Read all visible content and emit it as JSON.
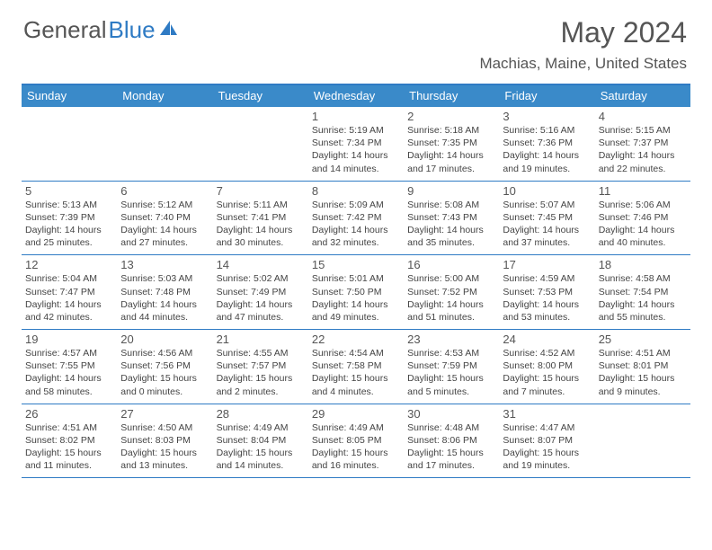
{
  "logo": {
    "text_a": "General",
    "text_b": "Blue",
    "icon_fill": "#2f7bc4"
  },
  "title": "May 2024",
  "location": "Machias, Maine, United States",
  "colors": {
    "header_bg": "#3a8ac9",
    "header_border": "#2f7bc4",
    "row_border": "#2f7bc4",
    "text": "#444444",
    "title_text": "#555555"
  },
  "day_headers": [
    "Sunday",
    "Monday",
    "Tuesday",
    "Wednesday",
    "Thursday",
    "Friday",
    "Saturday"
  ],
  "cell_labels": {
    "sunrise": "Sunrise:",
    "sunset": "Sunset:",
    "daylight": "Daylight:"
  },
  "weeks": [
    [
      null,
      null,
      null,
      {
        "d": "1",
        "sr": "5:19 AM",
        "ss": "7:34 PM",
        "dl": "14 hours and 14 minutes."
      },
      {
        "d": "2",
        "sr": "5:18 AM",
        "ss": "7:35 PM",
        "dl": "14 hours and 17 minutes."
      },
      {
        "d": "3",
        "sr": "5:16 AM",
        "ss": "7:36 PM",
        "dl": "14 hours and 19 minutes."
      },
      {
        "d": "4",
        "sr": "5:15 AM",
        "ss": "7:37 PM",
        "dl": "14 hours and 22 minutes."
      }
    ],
    [
      {
        "d": "5",
        "sr": "5:13 AM",
        "ss": "7:39 PM",
        "dl": "14 hours and 25 minutes."
      },
      {
        "d": "6",
        "sr": "5:12 AM",
        "ss": "7:40 PM",
        "dl": "14 hours and 27 minutes."
      },
      {
        "d": "7",
        "sr": "5:11 AM",
        "ss": "7:41 PM",
        "dl": "14 hours and 30 minutes."
      },
      {
        "d": "8",
        "sr": "5:09 AM",
        "ss": "7:42 PM",
        "dl": "14 hours and 32 minutes."
      },
      {
        "d": "9",
        "sr": "5:08 AM",
        "ss": "7:43 PM",
        "dl": "14 hours and 35 minutes."
      },
      {
        "d": "10",
        "sr": "5:07 AM",
        "ss": "7:45 PM",
        "dl": "14 hours and 37 minutes."
      },
      {
        "d": "11",
        "sr": "5:06 AM",
        "ss": "7:46 PM",
        "dl": "14 hours and 40 minutes."
      }
    ],
    [
      {
        "d": "12",
        "sr": "5:04 AM",
        "ss": "7:47 PM",
        "dl": "14 hours and 42 minutes."
      },
      {
        "d": "13",
        "sr": "5:03 AM",
        "ss": "7:48 PM",
        "dl": "14 hours and 44 minutes."
      },
      {
        "d": "14",
        "sr": "5:02 AM",
        "ss": "7:49 PM",
        "dl": "14 hours and 47 minutes."
      },
      {
        "d": "15",
        "sr": "5:01 AM",
        "ss": "7:50 PM",
        "dl": "14 hours and 49 minutes."
      },
      {
        "d": "16",
        "sr": "5:00 AM",
        "ss": "7:52 PM",
        "dl": "14 hours and 51 minutes."
      },
      {
        "d": "17",
        "sr": "4:59 AM",
        "ss": "7:53 PM",
        "dl": "14 hours and 53 minutes."
      },
      {
        "d": "18",
        "sr": "4:58 AM",
        "ss": "7:54 PM",
        "dl": "14 hours and 55 minutes."
      }
    ],
    [
      {
        "d": "19",
        "sr": "4:57 AM",
        "ss": "7:55 PM",
        "dl": "14 hours and 58 minutes."
      },
      {
        "d": "20",
        "sr": "4:56 AM",
        "ss": "7:56 PM",
        "dl": "15 hours and 0 minutes."
      },
      {
        "d": "21",
        "sr": "4:55 AM",
        "ss": "7:57 PM",
        "dl": "15 hours and 2 minutes."
      },
      {
        "d": "22",
        "sr": "4:54 AM",
        "ss": "7:58 PM",
        "dl": "15 hours and 4 minutes."
      },
      {
        "d": "23",
        "sr": "4:53 AM",
        "ss": "7:59 PM",
        "dl": "15 hours and 5 minutes."
      },
      {
        "d": "24",
        "sr": "4:52 AM",
        "ss": "8:00 PM",
        "dl": "15 hours and 7 minutes."
      },
      {
        "d": "25",
        "sr": "4:51 AM",
        "ss": "8:01 PM",
        "dl": "15 hours and 9 minutes."
      }
    ],
    [
      {
        "d": "26",
        "sr": "4:51 AM",
        "ss": "8:02 PM",
        "dl": "15 hours and 11 minutes."
      },
      {
        "d": "27",
        "sr": "4:50 AM",
        "ss": "8:03 PM",
        "dl": "15 hours and 13 minutes."
      },
      {
        "d": "28",
        "sr": "4:49 AM",
        "ss": "8:04 PM",
        "dl": "15 hours and 14 minutes."
      },
      {
        "d": "29",
        "sr": "4:49 AM",
        "ss": "8:05 PM",
        "dl": "15 hours and 16 minutes."
      },
      {
        "d": "30",
        "sr": "4:48 AM",
        "ss": "8:06 PM",
        "dl": "15 hours and 17 minutes."
      },
      {
        "d": "31",
        "sr": "4:47 AM",
        "ss": "8:07 PM",
        "dl": "15 hours and 19 minutes."
      },
      null
    ]
  ]
}
